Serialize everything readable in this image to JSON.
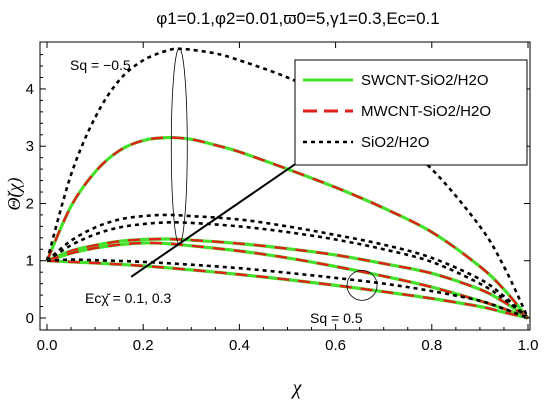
{
  "chart_data": {
    "type": "line",
    "title": "φ1=0.1,φ2=0.01,ϖ0=5,γ1=0.3,Ec=0.1",
    "xlabel": "χ",
    "ylabel": "Θ̆(χ)",
    "xlim": [
      0,
      1
    ],
    "ylim": [
      0,
      5
    ],
    "xticks": [
      "0.0",
      "0.2",
      "0.4",
      "0.6",
      "0.8",
      "1.0"
    ],
    "yticks": [
      "0",
      "1",
      "2",
      "3",
      "4"
    ],
    "legend": {
      "placement": "top-right",
      "entries": [
        {
          "label": "SWCNT-SiO2/H2O",
          "color": "#44e02c",
          "style": "solid"
        },
        {
          "label": "MWCNT-SiO2/H2O",
          "color": "#e0201a",
          "style": "dashed"
        },
        {
          "label": "SiO2/H2O",
          "color": "#000000",
          "style": "dotted"
        }
      ]
    },
    "annotations": [
      {
        "text": "Sq = −0.5",
        "x": 0.05,
        "y": 4.6
      },
      {
        "text": "Sq = 0.5",
        "x": 0.58,
        "y": 0.05
      },
      {
        "text": "Ecχ̆ = 0.1, 0.3",
        "x": 0.05,
        "y": 0.45
      }
    ],
    "series": [
      {
        "group": "Sq=-0.5, Ec=0.3",
        "kind": "nanofluid",
        "x": [
          0,
          0.05,
          0.1,
          0.15,
          0.2,
          0.25,
          0.3,
          0.35,
          0.4,
          0.5,
          0.6,
          0.7,
          0.8,
          0.9,
          0.95,
          1.0
        ],
        "y": [
          1.0,
          1.95,
          2.55,
          2.92,
          3.1,
          3.15,
          3.12,
          3.02,
          2.9,
          2.6,
          2.28,
          1.92,
          1.5,
          0.9,
          0.5,
          0.0
        ]
      },
      {
        "group": "Sq=-0.5, Ec=0.3",
        "kind": "SiO2/H2O",
        "x": [
          0,
          0.05,
          0.1,
          0.15,
          0.2,
          0.25,
          0.28,
          0.35,
          0.4,
          0.5,
          0.6,
          0.7,
          0.8,
          0.9,
          0.95,
          1.0
        ],
        "y": [
          1.0,
          2.5,
          3.5,
          4.15,
          4.5,
          4.67,
          4.7,
          4.62,
          4.5,
          4.2,
          3.8,
          3.3,
          2.6,
          1.6,
          0.9,
          0.0
        ]
      },
      {
        "group": "Sq=-0.5, Ec=0.1",
        "kind": "nanofluid",
        "x": [
          0,
          0.05,
          0.1,
          0.15,
          0.2,
          0.25,
          0.3,
          0.4,
          0.5,
          0.6,
          0.7,
          0.8,
          0.9,
          0.95,
          1.0
        ],
        "y": [
          1.0,
          1.17,
          1.27,
          1.34,
          1.37,
          1.38,
          1.36,
          1.3,
          1.21,
          1.1,
          0.95,
          0.78,
          0.5,
          0.28,
          0.0
        ]
      },
      {
        "group": "Sq=-0.5, Ec=0.1",
        "kind": "SiO2/H2O",
        "x": [
          0,
          0.05,
          0.1,
          0.15,
          0.2,
          0.25,
          0.3,
          0.4,
          0.5,
          0.6,
          0.7,
          0.8,
          0.9,
          0.95,
          1.0
        ],
        "y": [
          1.0,
          1.35,
          1.58,
          1.72,
          1.78,
          1.8,
          1.78,
          1.72,
          1.6,
          1.45,
          1.28,
          1.05,
          0.68,
          0.38,
          0.0
        ]
      },
      {
        "group": "Sq=0.5, Ec=0.3",
        "kind": "nanofluid",
        "x": [
          0,
          0.05,
          0.1,
          0.15,
          0.2,
          0.25,
          0.3,
          0.4,
          0.5,
          0.6,
          0.7,
          0.8,
          0.9,
          0.95,
          1.0
        ],
        "y": [
          1.0,
          1.13,
          1.22,
          1.28,
          1.31,
          1.3,
          1.26,
          1.17,
          1.05,
          0.9,
          0.73,
          0.54,
          0.3,
          0.16,
          0.0
        ]
      },
      {
        "group": "Sq=0.5, Ec=0.3",
        "kind": "SiO2/H2O",
        "x": [
          0,
          0.05,
          0.1,
          0.15,
          0.2,
          0.25,
          0.3,
          0.4,
          0.5,
          0.6,
          0.7,
          0.8,
          0.9,
          0.95,
          1.0
        ],
        "y": [
          1.0,
          1.27,
          1.46,
          1.58,
          1.64,
          1.67,
          1.66,
          1.6,
          1.5,
          1.37,
          1.2,
          0.98,
          0.6,
          0.33,
          0.0
        ]
      },
      {
        "group": "Sq=0.5, Ec=0.1",
        "kind": "nanofluid",
        "x": [
          0,
          0.05,
          0.1,
          0.2,
          0.3,
          0.4,
          0.5,
          0.6,
          0.7,
          0.8,
          0.9,
          0.95,
          1.0
        ],
        "y": [
          1.0,
          0.98,
          0.96,
          0.91,
          0.84,
          0.76,
          0.67,
          0.57,
          0.46,
          0.34,
          0.2,
          0.1,
          0.0
        ]
      },
      {
        "group": "Sq=0.5, Ec=0.1",
        "kind": "SiO2/H2O",
        "x": [
          0,
          0.05,
          0.1,
          0.2,
          0.3,
          0.4,
          0.5,
          0.6,
          0.7,
          0.8,
          0.9,
          0.95,
          1.0
        ],
        "y": [
          1.0,
          1.02,
          1.01,
          0.98,
          0.93,
          0.87,
          0.79,
          0.7,
          0.6,
          0.47,
          0.3,
          0.16,
          0.0
        ]
      }
    ]
  }
}
